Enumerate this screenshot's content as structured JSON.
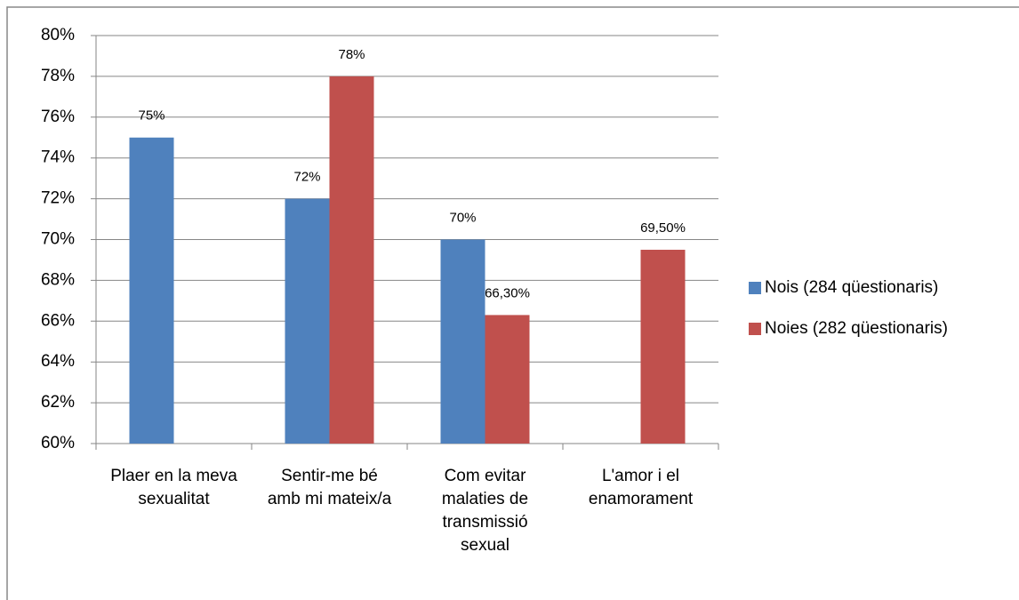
{
  "chart_data": {
    "type": "bar",
    "categories": [
      "Plaer en la meva sexualitat",
      "Sentir-me bé amb mi mateix/a",
      "Com evitar malaties de transmissió sexual",
      "L'amor i el enamorament"
    ],
    "series": [
      {
        "name": "Nois (284 qüestionaris)",
        "color": "#4f81bd",
        "values": [
          75,
          72,
          70,
          null
        ],
        "value_labels": [
          "75%",
          "72%",
          "70%",
          null
        ]
      },
      {
        "name": "Noies (282 qüestionaris)",
        "color": "#c0504d",
        "values": [
          null,
          78,
          66.3,
          69.5
        ],
        "value_labels": [
          null,
          "78%",
          "66,30%",
          "69,50%"
        ]
      }
    ],
    "ylim": [
      60,
      80
    ],
    "yticks": [
      {
        "value": 60,
        "label": "60%"
      },
      {
        "value": 62,
        "label": "62%"
      },
      {
        "value": 64,
        "label": "64%"
      },
      {
        "value": 66,
        "label": "66%"
      },
      {
        "value": 68,
        "label": "68%"
      },
      {
        "value": 70,
        "label": "70%"
      },
      {
        "value": 72,
        "label": "72%"
      },
      {
        "value": 74,
        "label": "74%"
      },
      {
        "value": 76,
        "label": "76%"
      },
      {
        "value": 78,
        "label": "78%"
      },
      {
        "value": 80,
        "label": "80%"
      }
    ],
    "grid": true,
    "legend": "right"
  }
}
